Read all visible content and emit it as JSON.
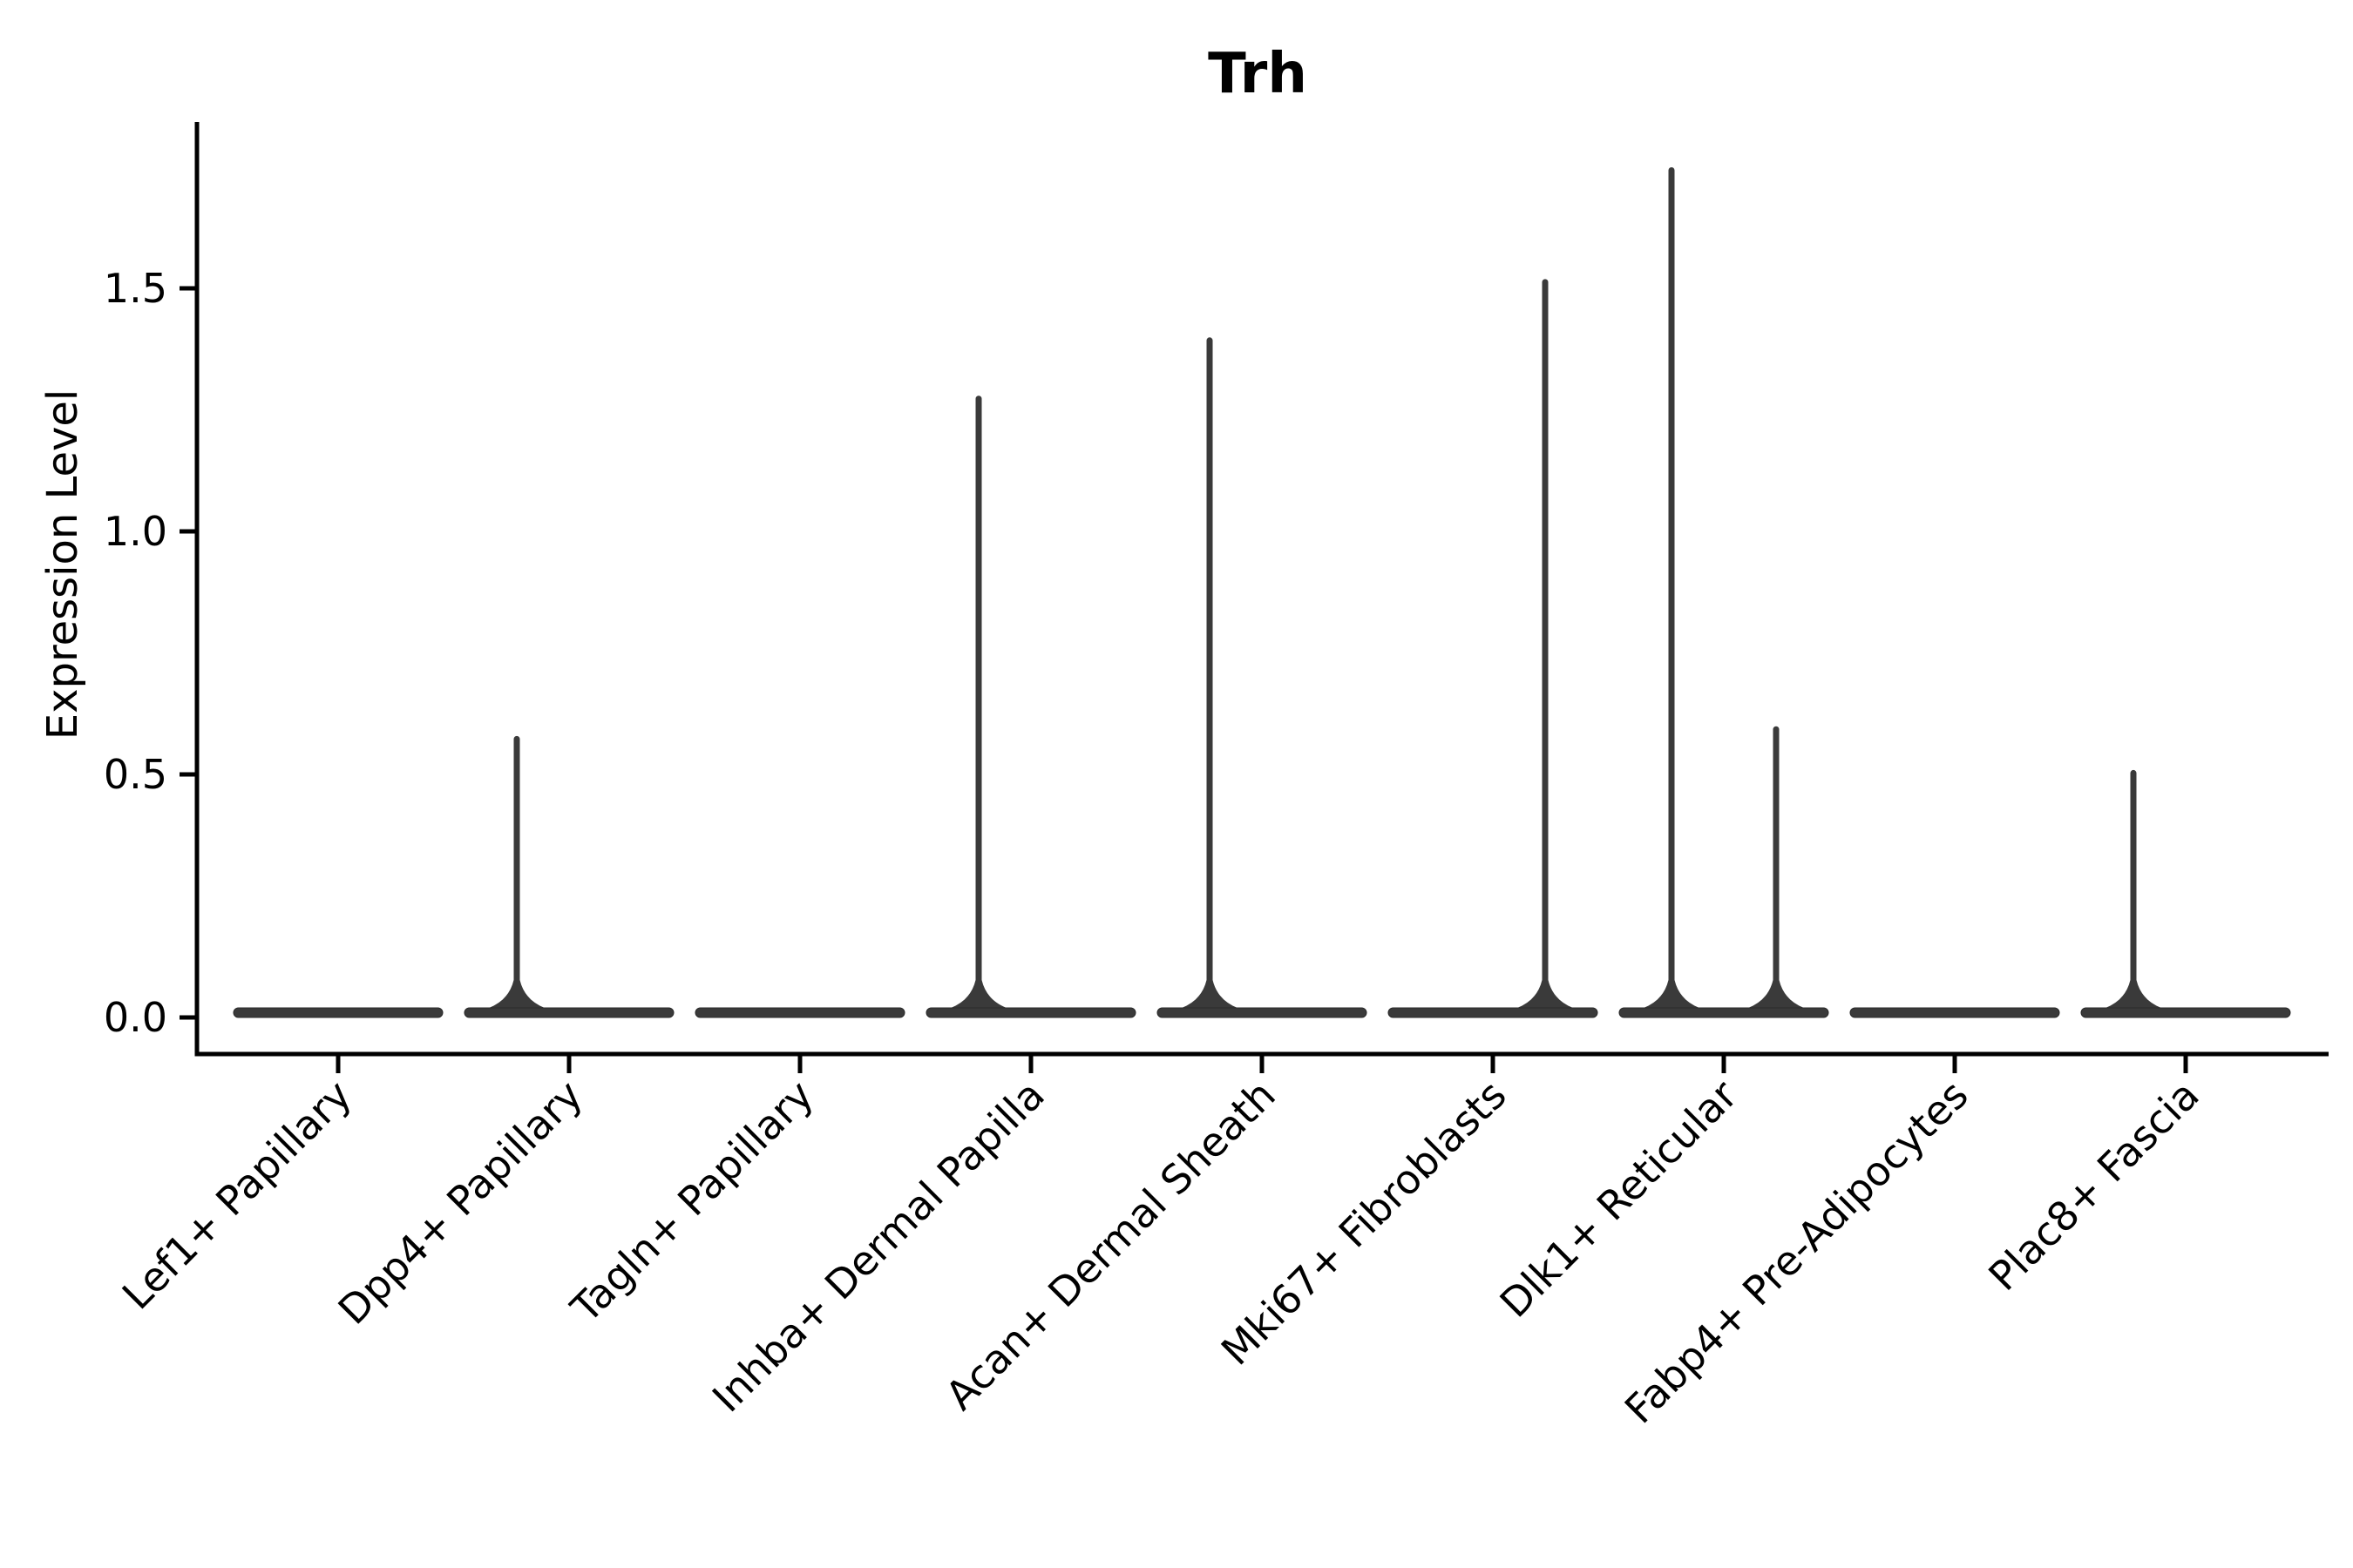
{
  "figure": {
    "title": "Trh",
    "y_axis": {
      "label": "Expression Level",
      "tick_labels": [
        "0.0",
        "0.5",
        "1.0",
        "1.5"
      ]
    },
    "x_axis": {
      "tick_labels": [
        "Lef1+ Papillary",
        "Dpp4+ Papillary",
        "Tagln+ Papillary",
        "Inhba+ Dermal Papilla",
        "Acan+ Dermal Sheath",
        "Mki67+ Fibroblasts",
        "Dlk1+ Reticular",
        "Fabp4+ Pre-Adipocytes",
        "Plac8+ Fascia"
      ]
    }
  },
  "chart_data": {
    "type": "violin",
    "title": "Trh",
    "xlabel": "",
    "ylabel": "Expression Level",
    "categories": [
      "Lef1+ Papillary",
      "Dpp4+ Papillary",
      "Tagln+ Papillary",
      "Inhba+ Dermal Papilla",
      "Acan+ Dermal Sheath",
      "Mki67+ Fibroblasts",
      "Dlk1+ Reticular",
      "Fabp4+ Pre-Adipocytes",
      "Plac8+ Fascia"
    ],
    "description": "Split violin plot of Trh expression: every violin is a wide flat base at 0 (nearly all cells have zero expression) with thin vertical spikes reaching the maximum expression of rare positive cells. Spikes sit on the left or right half of each category.",
    "series": [
      {
        "name": "left-half",
        "max_expression": [
          0,
          0.58,
          0,
          1.28,
          1.4,
          0,
          1.75,
          0,
          0.51
        ]
      },
      {
        "name": "right-half",
        "max_expression": [
          0,
          0,
          0,
          0,
          0,
          1.52,
          0.6,
          0,
          0
        ]
      }
    ],
    "yticks": [
      0.0,
      0.5,
      1.0,
      1.5
    ],
    "ylim": [
      0,
      1.85
    ],
    "grid": false,
    "legend": false
  },
  "style": {
    "violin_fill": "#3a3a3a",
    "violin_stroke": "#2a2a2a",
    "axis_color": "#000000",
    "background": "#ffffff"
  }
}
